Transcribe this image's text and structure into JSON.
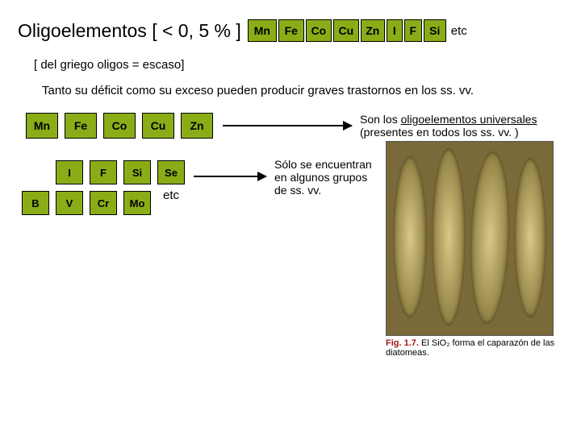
{
  "title": "Oligoelementos [ < 0, 5 % ]",
  "topElements": [
    "Mn",
    "Fe",
    "Co",
    "Cu",
    "Zn",
    "I",
    "F",
    "Si"
  ],
  "topWidths": [
    36,
    32,
    32,
    32,
    30,
    20,
    22,
    28
  ],
  "etc": "etc",
  "sub1": "[ del griego oligos = escaso]",
  "sub2": "Tanto su déficit como su exceso pueden producir graves trastornos en los ss. vv.",
  "universalElements": [
    "Mn",
    "Fe",
    "Co",
    "Cu",
    "Zn"
  ],
  "universalDesc1": "Son los ",
  "universalDesc2": "oligoelementos universales",
  "universalDesc3": " (presentes en todos los ss. vv. )",
  "group2": {
    "row1": [
      "I",
      "F",
      "Si",
      "Se"
    ],
    "row2": [
      "B",
      "V",
      "Cr",
      "Mo"
    ]
  },
  "etc2": "etc",
  "desc2": "Sólo se encuentran en algunos grupos de ss. vv.",
  "caption": {
    "fig": "Fig. 1.7.",
    "txt": " El SiO₂ forma el caparazón de las diatomeas."
  },
  "colors": {
    "box": "#8aad17",
    "bg": "#ffffff",
    "photo": "#7a6a3a",
    "caption": "#a01818"
  },
  "fontsizes": {
    "title": 23,
    "body": 15,
    "small": 14,
    "caption": 11
  }
}
